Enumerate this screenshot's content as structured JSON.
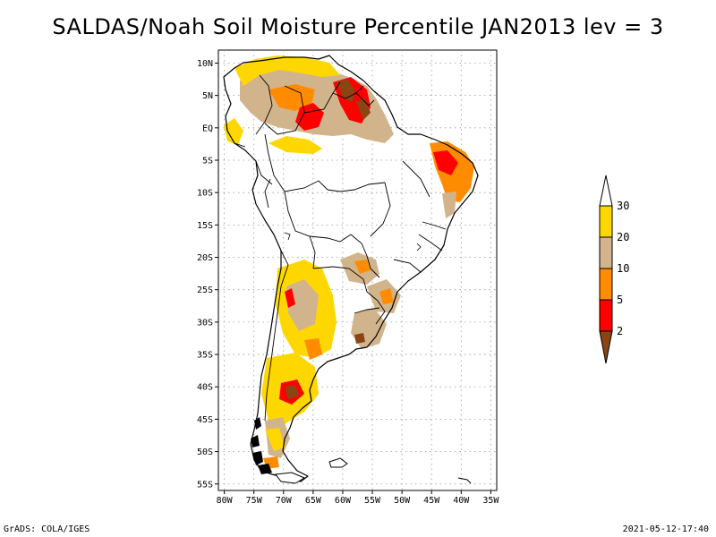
{
  "title": "SALDAS/Noah Soil Moisture Percentile JAN2013 lev = 3",
  "footer": {
    "left": "GrADS: COLA/IGES",
    "right": "2021-05-12-17:40"
  },
  "map": {
    "lon_range": [
      -81,
      -34
    ],
    "lat_range": [
      -56,
      12
    ],
    "lat_ticks": [
      {
        "value": 10,
        "label": "10N"
      },
      {
        "value": 5,
        "label": "5N"
      },
      {
        "value": 0,
        "label": "EQ"
      },
      {
        "value": -5,
        "label": "5S"
      },
      {
        "value": -10,
        "label": "10S"
      },
      {
        "value": -15,
        "label": "15S"
      },
      {
        "value": -20,
        "label": "20S"
      },
      {
        "value": -25,
        "label": "25S"
      },
      {
        "value": -30,
        "label": "30S"
      },
      {
        "value": -35,
        "label": "35S"
      },
      {
        "value": -40,
        "label": "40S"
      },
      {
        "value": -45,
        "label": "45S"
      },
      {
        "value": -50,
        "label": "50S"
      },
      {
        "value": -55,
        "label": "55S"
      }
    ],
    "lon_ticks": [
      {
        "value": -80,
        "label": "80W"
      },
      {
        "value": -75,
        "label": "75W"
      },
      {
        "value": -70,
        "label": "70W"
      },
      {
        "value": -65,
        "label": "65W"
      },
      {
        "value": -60,
        "label": "60W"
      },
      {
        "value": -55,
        "label": "55W"
      },
      {
        "value": -50,
        "label": "50W"
      },
      {
        "value": -45,
        "label": "45W"
      },
      {
        "value": -40,
        "label": "40W"
      },
      {
        "value": -35,
        "label": "35W"
      }
    ],
    "grid": "dotted"
  },
  "colorbar": {
    "labels": [
      "2",
      "5",
      "10",
      "20",
      "30"
    ],
    "bins": [
      {
        "range": "<2",
        "color": "#8b4513"
      },
      {
        "range": "2-5",
        "color": "#ff0000"
      },
      {
        "range": "5-10",
        "color": "#ff8c00"
      },
      {
        "range": "10-20",
        "color": "#d2b48c"
      },
      {
        "range": "20-30",
        "color": "#ffd700"
      },
      {
        "range": ">30",
        "color": "#ffffff"
      }
    ]
  },
  "colors": {
    "dry_extreme": "#8b4513",
    "very_dry": "#ff0000",
    "dry": "#ff8c00",
    "moderately_dry": "#d2b48c",
    "slightly_dry": "#ffd700",
    "normal": "#ffffff"
  }
}
